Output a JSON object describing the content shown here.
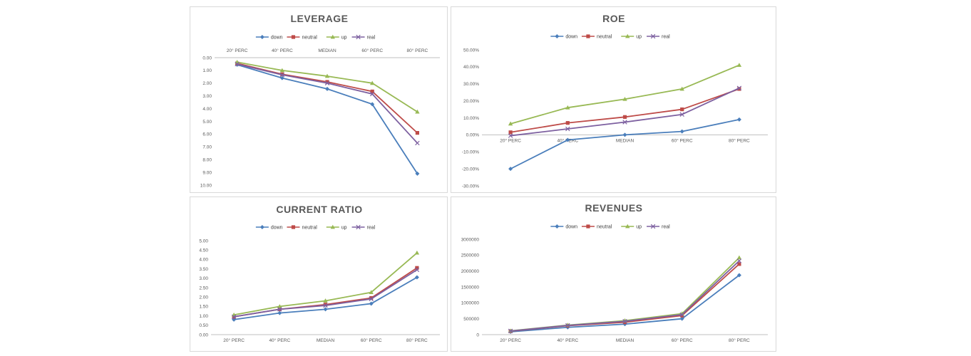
{
  "chart_data": [
    {
      "type": "line",
      "title": "LEVERAGE",
      "categories": [
        "20° PERC",
        "40° PERC",
        "MEDIAN",
        "60° PERC",
        "80° PERC"
      ],
      "y_ticks": [
        "0.00",
        "1.00",
        "2.00",
        "3.00",
        "4.00",
        "5.00",
        "6.00",
        "7.00",
        "8.00",
        "9.00",
        "10.00"
      ],
      "ylim": [
        0,
        10
      ],
      "y_reversed": true,
      "category_axis_at": "top",
      "legend_position": "top",
      "series": [
        {
          "name": "down",
          "values": [
            0.55,
            1.6,
            2.45,
            3.65,
            9.1
          ]
        },
        {
          "name": "neutral",
          "values": [
            0.45,
            1.3,
            1.9,
            2.65,
            5.9
          ]
        },
        {
          "name": "up",
          "values": [
            0.35,
            1.0,
            1.45,
            2.0,
            4.25
          ]
        },
        {
          "name": "real",
          "values": [
            0.5,
            1.35,
            2.0,
            2.85,
            6.7
          ]
        }
      ]
    },
    {
      "type": "line",
      "title": "ROE",
      "categories": [
        "20° PERC",
        "40° PERC",
        "MEDIAN",
        "60° PERC",
        "80° PERC"
      ],
      "y_ticks": [
        "50.00%",
        "40.00%",
        "30.00%",
        "20.00%",
        "10.00%",
        "0.00%",
        "-10.00%",
        "-20.00%",
        "-30.00%"
      ],
      "ylim": [
        -30,
        50
      ],
      "y_reversed": false,
      "category_axis_at": "zero",
      "legend_position": "top",
      "series": [
        {
          "name": "down",
          "values": [
            -20.0,
            -3.0,
            0.0,
            2.0,
            9.0
          ]
        },
        {
          "name": "neutral",
          "values": [
            1.5,
            7.0,
            10.5,
            15.0,
            27.0
          ]
        },
        {
          "name": "up",
          "values": [
            6.5,
            16.0,
            21.0,
            27.0,
            41.0
          ]
        },
        {
          "name": "real",
          "values": [
            -0.5,
            3.5,
            7.5,
            12.0,
            27.5
          ]
        }
      ]
    },
    {
      "type": "line",
      "title": "CURRENT RATIO",
      "categories": [
        "20° PERC",
        "40° PERC",
        "MEDIAN",
        "60° PERC",
        "80° PERC"
      ],
      "y_ticks": [
        "5.00",
        "4.50",
        "4.00",
        "3.50",
        "3.00",
        "2.50",
        "2.00",
        "1.50",
        "1.00",
        "0.50",
        "0.00"
      ],
      "ylim": [
        0,
        5
      ],
      "y_reversed": false,
      "category_axis_at": "zero",
      "legend_position": "top",
      "series": [
        {
          "name": "down",
          "values": [
            0.8,
            1.15,
            1.35,
            1.65,
            3.05
          ]
        },
        {
          "name": "neutral",
          "values": [
            0.95,
            1.35,
            1.6,
            1.95,
            3.55
          ]
        },
        {
          "name": "up",
          "values": [
            1.05,
            1.5,
            1.8,
            2.25,
            4.35
          ]
        },
        {
          "name": "real",
          "values": [
            0.95,
            1.35,
            1.55,
            1.9,
            3.45
          ]
        }
      ]
    },
    {
      "type": "line",
      "title": "REVENUES",
      "categories": [
        "20° PERC",
        "40° PERC",
        "MEDIAN",
        "60° PERC",
        "80° PERC"
      ],
      "y_ticks": [
        "3000000",
        "2500000",
        "2000000",
        "1500000",
        "1000000",
        "500000",
        "0"
      ],
      "ylim": [
        0,
        3000000
      ],
      "y_reversed": false,
      "category_axis_at": "zero",
      "legend_position": "top",
      "series": [
        {
          "name": "down",
          "values": [
            90000,
            230000,
            330000,
            500000,
            1870000
          ]
        },
        {
          "name": "neutral",
          "values": [
            110000,
            280000,
            390000,
            600000,
            2220000
          ]
        },
        {
          "name": "up",
          "values": [
            120000,
            300000,
            440000,
            660000,
            2420000
          ]
        },
        {
          "name": "real",
          "values": [
            115000,
            290000,
            420000,
            630000,
            2320000
          ]
        }
      ]
    }
  ],
  "series_colors": {
    "down": "#4a7ebb",
    "neutral": "#be4b48",
    "up": "#98b954",
    "real": "#7d60a0"
  },
  "series_markers": {
    "down": "diamond",
    "neutral": "square",
    "up": "triangle",
    "real": "x"
  },
  "colors": {
    "axis": "#bfbfbf",
    "title": "#595959",
    "ticks": "#595959"
  }
}
